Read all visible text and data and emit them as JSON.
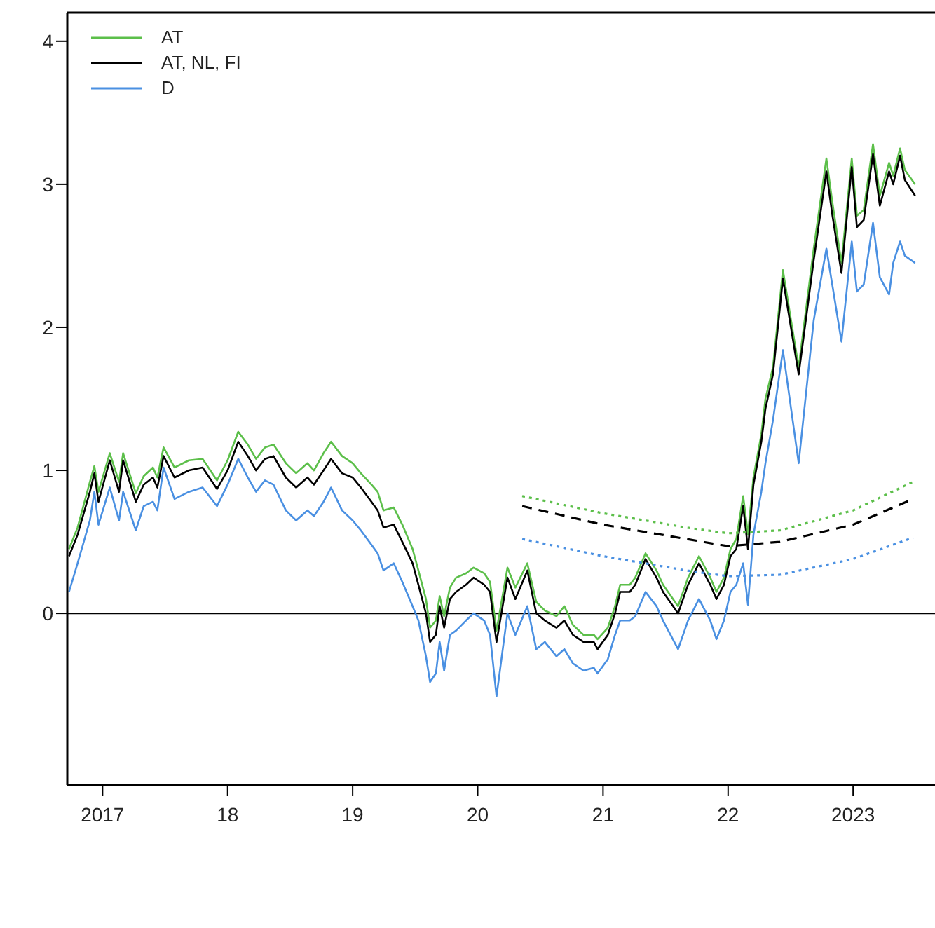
{
  "chart_data": {
    "type": "line",
    "legend": "top left",
    "grid": false,
    "xlim": [
      "2016-09-20",
      "2023-08-28"
    ],
    "ylim": [
      -1.2,
      4.2
    ],
    "yticks": [
      0,
      1,
      2,
      3,
      4
    ],
    "xticks": [
      {
        "value": "2017-01-01",
        "label": "2017"
      },
      {
        "value": "2018-01-01",
        "label": "18"
      },
      {
        "value": "2019-01-01",
        "label": "19"
      },
      {
        "value": "2020-01-01",
        "label": "20"
      },
      {
        "value": "2021-01-01",
        "label": "21"
      },
      {
        "value": "2022-01-01",
        "label": "22"
      },
      {
        "value": "2023-01-01",
        "label": "2023"
      }
    ],
    "ref_lines": [
      {
        "axis": "y",
        "value": 0,
        "color": "#000000"
      }
    ],
    "x": [
      "2016-09-25",
      "2016-10-20",
      "2016-11-25",
      "2016-12-08",
      "2016-12-20",
      "2017-01-22",
      "2017-02-18",
      "2017-03-02",
      "2017-04-08",
      "2017-05-01",
      "2017-05-28",
      "2017-06-10",
      "2017-06-28",
      "2017-07-30",
      "2017-09-10",
      "2017-10-20",
      "2017-12-01",
      "2018-01-01",
      "2018-02-01",
      "2018-03-01",
      "2018-03-25",
      "2018-04-20",
      "2018-05-15",
      "2018-06-20",
      "2018-07-20",
      "2018-08-22",
      "2018-09-10",
      "2018-10-08",
      "2018-10-30",
      "2018-12-01",
      "2019-01-01",
      "2019-01-25",
      "2019-02-25",
      "2019-03-15",
      "2019-04-01",
      "2019-05-01",
      "2019-05-26",
      "2019-06-25",
      "2019-07-12",
      "2019-08-03",
      "2019-08-15",
      "2019-09-01",
      "2019-09-12",
      "2019-09-25",
      "2019-10-12",
      "2019-10-30",
      "2019-11-28",
      "2019-12-20",
      "2020-01-20",
      "2020-02-06",
      "2020-02-25",
      "2020-03-28",
      "2020-04-20",
      "2020-05-25",
      "2020-06-20",
      "2020-07-15",
      "2020-08-18",
      "2020-09-10",
      "2020-10-05",
      "2020-11-05",
      "2020-12-05",
      "2020-12-16",
      "2021-01-15",
      "2021-02-05",
      "2021-02-20",
      "2021-03-20",
      "2021-04-05",
      "2021-05-05",
      "2021-06-06",
      "2021-06-25",
      "2021-08-08",
      "2021-09-06",
      "2021-10-08",
      "2021-11-10",
      "2021-11-28",
      "2021-12-20",
      "2022-01-08",
      "2022-01-25",
      "2022-02-14",
      "2022-02-28",
      "2022-03-16",
      "2022-04-08",
      "2022-04-20",
      "2022-05-12",
      "2022-06-10",
      "2022-07-26",
      "2022-09-08",
      "2022-10-15",
      "2022-11-01",
      "2022-11-28",
      "2022-12-28",
      "2023-01-12",
      "2023-02-01",
      "2023-02-28",
      "2023-03-20",
      "2023-04-16",
      "2023-04-28",
      "2023-05-18",
      "2023-06-01",
      "2023-07-01"
    ],
    "series": [
      {
        "name": "AT",
        "color": "#5cbf4a",
        "values": [
          0.45,
          0.6,
          0.92,
          1.03,
          0.85,
          1.12,
          0.92,
          1.12,
          0.84,
          0.96,
          1.02,
          0.95,
          1.16,
          1.02,
          1.07,
          1.08,
          0.93,
          1.07,
          1.27,
          1.18,
          1.08,
          1.16,
          1.18,
          1.05,
          0.98,
          1.05,
          1.0,
          1.12,
          1.2,
          1.1,
          1.05,
          0.98,
          0.9,
          0.85,
          0.72,
          0.74,
          0.62,
          0.45,
          0.3,
          0.1,
          -0.1,
          -0.05,
          0.12,
          -0.02,
          0.18,
          0.25,
          0.28,
          0.32,
          0.28,
          0.22,
          -0.12,
          0.32,
          0.18,
          0.35,
          0.08,
          0.02,
          -0.02,
          0.05,
          -0.08,
          -0.15,
          -0.15,
          -0.18,
          -0.1,
          0.05,
          0.2,
          0.2,
          0.25,
          0.42,
          0.3,
          0.2,
          0.05,
          0.25,
          0.4,
          0.25,
          0.15,
          0.25,
          0.45,
          0.52,
          0.82,
          0.55,
          0.95,
          1.25,
          1.5,
          1.72,
          2.4,
          1.72,
          2.55,
          3.18,
          2.88,
          2.45,
          3.18,
          2.78,
          2.82,
          3.28,
          2.92,
          3.15,
          3.06,
          3.25,
          3.1,
          3.0
        ]
      },
      {
        "name": "AT, NL, FI",
        "color": "#000000",
        "values": [
          0.4,
          0.55,
          0.85,
          0.98,
          0.78,
          1.07,
          0.85,
          1.07,
          0.78,
          0.9,
          0.95,
          0.88,
          1.1,
          0.95,
          1.0,
          1.02,
          0.87,
          1.0,
          1.2,
          1.1,
          1.0,
          1.08,
          1.1,
          0.95,
          0.88,
          0.95,
          0.9,
          1.0,
          1.08,
          0.98,
          0.95,
          0.88,
          0.78,
          0.72,
          0.6,
          0.62,
          0.5,
          0.35,
          0.2,
          0.0,
          -0.2,
          -0.15,
          0.05,
          -0.1,
          0.1,
          0.15,
          0.2,
          0.25,
          0.2,
          0.15,
          -0.2,
          0.25,
          0.1,
          0.3,
          0.0,
          -0.05,
          -0.1,
          -0.05,
          -0.15,
          -0.2,
          -0.2,
          -0.25,
          -0.15,
          0.0,
          0.15,
          0.15,
          0.2,
          0.38,
          0.25,
          0.15,
          0.0,
          0.2,
          0.35,
          0.2,
          0.1,
          0.2,
          0.4,
          0.45,
          0.75,
          0.45,
          0.9,
          1.2,
          1.43,
          1.67,
          2.34,
          1.67,
          2.47,
          3.09,
          2.79,
          2.38,
          3.12,
          2.7,
          2.75,
          3.21,
          2.85,
          3.09,
          3.0,
          3.2,
          3.03,
          2.92
        ]
      },
      {
        "name": "D",
        "color": "#4a90e2",
        "values": [
          0.15,
          0.35,
          0.65,
          0.85,
          0.62,
          0.88,
          0.65,
          0.85,
          0.58,
          0.75,
          0.78,
          0.72,
          1.02,
          0.8,
          0.85,
          0.88,
          0.75,
          0.9,
          1.08,
          0.95,
          0.85,
          0.93,
          0.9,
          0.72,
          0.65,
          0.72,
          0.68,
          0.78,
          0.88,
          0.72,
          0.65,
          0.58,
          0.48,
          0.42,
          0.3,
          0.35,
          0.22,
          0.05,
          -0.05,
          -0.3,
          -0.48,
          -0.42,
          -0.2,
          -0.4,
          -0.15,
          -0.12,
          -0.05,
          0.0,
          -0.05,
          -0.15,
          -0.58,
          0.0,
          -0.15,
          0.05,
          -0.25,
          -0.2,
          -0.3,
          -0.25,
          -0.35,
          -0.4,
          -0.38,
          -0.42,
          -0.32,
          -0.15,
          -0.05,
          -0.05,
          -0.02,
          0.15,
          0.05,
          -0.05,
          -0.25,
          -0.05,
          0.1,
          -0.05,
          -0.18,
          -0.05,
          0.15,
          0.2,
          0.35,
          0.06,
          0.55,
          0.85,
          1.05,
          1.35,
          1.84,
          1.05,
          2.05,
          2.55,
          2.3,
          1.9,
          2.6,
          2.25,
          2.3,
          2.73,
          2.35,
          2.23,
          2.45,
          2.6,
          2.5,
          2.45
        ]
      },
      {
        "color": "#5cbf4a",
        "line_style": "dotted",
        "x": [
          "2020-05-10",
          "2021-01-01",
          "2021-09-01",
          "2022-01-01",
          "2022-06-01",
          "2023-01-01",
          "2023-06-25"
        ],
        "values": [
          0.82,
          0.7,
          0.6,
          0.56,
          0.58,
          0.72,
          0.92
        ]
      },
      {
        "color": "#000000",
        "line_style": "dashed",
        "x": [
          "2020-05-10",
          "2021-01-01",
          "2021-09-01",
          "2022-01-01",
          "2022-06-01",
          "2023-01-01",
          "2023-06-25"
        ],
        "values": [
          0.75,
          0.62,
          0.52,
          0.47,
          0.5,
          0.62,
          0.8
        ]
      },
      {
        "color": "#4a90e2",
        "line_style": "dotted",
        "x": [
          "2020-05-10",
          "2021-01-01",
          "2021-09-01",
          "2022-01-01",
          "2022-06-01",
          "2023-01-01",
          "2023-06-25"
        ],
        "values": [
          0.52,
          0.4,
          0.3,
          0.26,
          0.27,
          0.38,
          0.53
        ]
      }
    ]
  }
}
